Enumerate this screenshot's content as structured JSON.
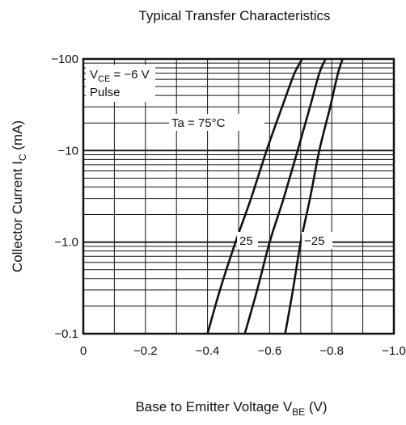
{
  "chart_data": {
    "type": "line",
    "title": "Typical Transfer Characteristics",
    "xlabel": {
      "main": "Base to Emitter Voltage  V",
      "sub": "BE",
      "unit": "  (V)"
    },
    "ylabel": {
      "main": "Collector Current  I",
      "sub": "C",
      "unit": "  (mA)"
    },
    "x_scale": "linear",
    "y_scale": "log",
    "xlim": [
      0,
      -1.0
    ],
    "ylim": [
      -0.1,
      -100
    ],
    "x_ticks": [
      {
        "value": 0,
        "label": "0"
      },
      {
        "value": -0.2,
        "label": "−0.2"
      },
      {
        "value": -0.4,
        "label": "−0.4"
      },
      {
        "value": -0.6,
        "label": "−0.6"
      },
      {
        "value": -0.8,
        "label": "−0.8"
      },
      {
        "value": -1.0,
        "label": "−1.0"
      }
    ],
    "y_ticks": [
      {
        "value": -0.1,
        "label": "−0.1"
      },
      {
        "value": -1.0,
        "label": "−1.0"
      },
      {
        "value": -10,
        "label": "−10"
      },
      {
        "value": -100,
        "label": "−100"
      }
    ],
    "grid": true,
    "conditions": {
      "vce": {
        "main": "V",
        "sub": "CE",
        "rest": " = −6 V"
      },
      "pulse": "Pulse"
    },
    "series": [
      {
        "name": "Ta = 75°C",
        "points": [
          [
            -0.4,
            -0.1
          ],
          [
            -0.44,
            -0.3
          ],
          [
            -0.49,
            -1.0
          ],
          [
            -0.54,
            -3.0
          ],
          [
            -0.59,
            -10
          ],
          [
            -0.64,
            -30
          ],
          [
            -0.68,
            -70
          ],
          [
            -0.705,
            -100
          ]
        ]
      },
      {
        "name": "25",
        "points": [
          [
            -0.52,
            -0.1
          ],
          [
            -0.56,
            -0.3
          ],
          [
            -0.6,
            -1.0
          ],
          [
            -0.645,
            -3.0
          ],
          [
            -0.69,
            -10
          ],
          [
            -0.73,
            -30
          ],
          [
            -0.76,
            -70
          ],
          [
            -0.78,
            -100
          ]
        ]
      },
      {
        "name": "−25",
        "points": [
          [
            -0.65,
            -0.1
          ],
          [
            -0.675,
            -0.3
          ],
          [
            -0.7,
            -1.0
          ],
          [
            -0.73,
            -3.0
          ],
          [
            -0.76,
            -10
          ],
          [
            -0.795,
            -30
          ],
          [
            -0.82,
            -70
          ],
          [
            -0.835,
            -100
          ]
        ]
      }
    ],
    "colors": {
      "curve": "#111111",
      "grid": "#111111",
      "frame": "#111111"
    }
  }
}
